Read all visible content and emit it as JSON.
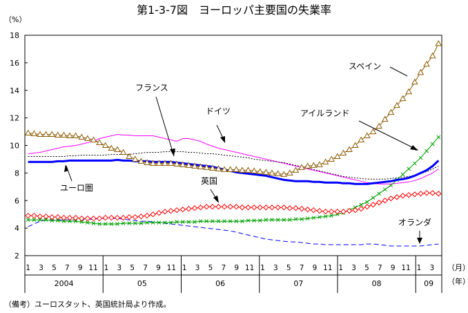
{
  "chart_data": {
    "type": "line",
    "title": "第1-3-7図　ヨーロッパ主要国の失業率",
    "y_unit": "（%）",
    "x_unit_month": "（月）",
    "x_unit_year": "（年）",
    "note": "（備考）ユーロスタット、英国統計局より作成。",
    "ylim": [
      2,
      18
    ],
    "y_ticks": [
      2,
      4,
      6,
      8,
      10,
      12,
      14,
      16,
      18
    ],
    "x_month_labels": [
      "1",
      "3",
      "5",
      "7",
      "9",
      "11",
      "1",
      "3",
      "5",
      "7",
      "9",
      "11",
      "1",
      "3",
      "5",
      "7",
      "9",
      "11",
      "1",
      "3",
      "5",
      "7",
      "9",
      "11",
      "1",
      "3",
      "5",
      "7",
      "9",
      "11",
      "1",
      "3"
    ],
    "years": [
      "2004",
      "05",
      "06",
      "07",
      "08",
      "09"
    ],
    "grid": false,
    "series": [
      {
        "name": "スペイン",
        "color": "#8B5A00",
        "marker": "triangle",
        "values": [
          10.9,
          10.85,
          10.8,
          10.8,
          10.8,
          10.75,
          10.75,
          10.7,
          10.7,
          10.6,
          10.5,
          10.4,
          10.2,
          10.0,
          9.8,
          9.7,
          9.5,
          9.2,
          9.0,
          8.85,
          8.75,
          8.7,
          8.7,
          8.7,
          8.7,
          8.65,
          8.6,
          8.55,
          8.5,
          8.45,
          8.4,
          8.35,
          8.3,
          8.25,
          8.25,
          8.25,
          8.2,
          8.2,
          8.15,
          8.1,
          8.05,
          8.0,
          7.95,
          7.9,
          8.0,
          8.2,
          8.4,
          8.5,
          8.55,
          8.6,
          8.8,
          9.0,
          9.2,
          9.45,
          9.7,
          10.0,
          10.4,
          10.7,
          11.0,
          11.4,
          11.9,
          12.4,
          12.9,
          13.4,
          13.9,
          14.6,
          15.3,
          15.9,
          16.5,
          17.4
        ]
      },
      {
        "name": "フランス",
        "color": "#FF00FF",
        "marker": "none",
        "values": [
          9.4,
          9.45,
          9.5,
          9.6,
          9.7,
          9.8,
          9.9,
          9.95,
          10.0,
          10.1,
          10.2,
          10.3,
          10.5,
          10.6,
          10.7,
          10.8,
          10.75,
          10.75,
          10.7,
          10.7,
          10.7,
          10.7,
          10.6,
          10.5,
          10.4,
          10.3,
          10.5,
          10.5,
          10.4,
          10.3,
          10.1,
          9.95,
          9.8,
          9.7,
          9.6,
          9.5,
          9.4,
          9.3,
          9.2,
          9.1,
          9.0,
          8.9,
          8.8,
          8.7,
          8.6,
          8.5,
          8.4,
          8.3,
          8.2,
          8.1,
          8.0,
          7.9,
          7.8,
          7.7,
          7.6,
          7.5,
          7.4,
          7.3,
          7.25,
          7.2,
          7.2,
          7.2,
          7.25,
          7.3,
          7.35,
          7.45,
          7.6,
          7.8,
          8.0,
          8.3
        ]
      },
      {
        "name": "ドイツ",
        "color": "#000000",
        "marker": "dotted",
        "values": [
          9.2,
          9.2,
          9.2,
          9.2,
          9.2,
          9.2,
          9.2,
          9.25,
          9.25,
          9.3,
          9.3,
          9.3,
          9.3,
          9.3,
          9.35,
          9.35,
          9.35,
          9.35,
          9.4,
          9.45,
          9.5,
          9.5,
          9.5,
          9.55,
          9.55,
          9.55,
          9.55,
          9.5,
          9.5,
          9.45,
          9.4,
          9.4,
          9.35,
          9.3,
          9.25,
          9.2,
          9.15,
          9.1,
          9.0,
          8.95,
          8.9,
          8.85,
          8.8,
          8.75,
          8.65,
          8.55,
          8.45,
          8.35,
          8.25,
          8.15,
          8.05,
          7.95,
          7.85,
          7.75,
          7.7,
          7.65,
          7.6,
          7.55,
          7.55,
          7.55,
          7.55,
          7.6,
          7.65,
          7.7,
          7.75,
          7.85,
          7.95,
          8.1,
          8.3,
          8.5
        ]
      },
      {
        "name": "アイルランド",
        "color": "#00A000",
        "marker": "cross",
        "values": [
          4.6,
          4.6,
          4.6,
          4.6,
          4.55,
          4.55,
          4.5,
          4.5,
          4.5,
          4.45,
          4.4,
          4.35,
          4.3,
          4.3,
          4.3,
          4.3,
          4.35,
          4.35,
          4.35,
          4.35,
          4.4,
          4.4,
          4.4,
          4.4,
          4.4,
          4.45,
          4.45,
          4.45,
          4.45,
          4.5,
          4.5,
          4.5,
          4.5,
          4.5,
          4.5,
          4.5,
          4.5,
          4.55,
          4.55,
          4.55,
          4.6,
          4.6,
          4.6,
          4.6,
          4.6,
          4.65,
          4.65,
          4.7,
          4.75,
          4.8,
          4.85,
          4.9,
          5.0,
          5.1,
          5.3,
          5.5,
          5.7,
          5.9,
          6.2,
          6.5,
          6.8,
          7.1,
          7.5,
          7.9,
          8.3,
          8.7,
          9.1,
          9.6,
          10.1,
          10.6
        ]
      },
      {
        "name": "ユーロ圏",
        "color": "#0000FF",
        "marker": "thick",
        "values": [
          8.8,
          8.8,
          8.8,
          8.8,
          8.8,
          8.85,
          8.85,
          8.9,
          8.9,
          8.9,
          8.9,
          8.9,
          8.9,
          8.9,
          8.9,
          8.95,
          8.9,
          8.9,
          8.85,
          8.85,
          8.85,
          8.8,
          8.8,
          8.8,
          8.8,
          8.75,
          8.7,
          8.65,
          8.6,
          8.55,
          8.5,
          8.45,
          8.35,
          8.25,
          8.15,
          8.05,
          8.0,
          7.95,
          7.9,
          7.85,
          7.8,
          7.7,
          7.6,
          7.5,
          7.45,
          7.4,
          7.4,
          7.4,
          7.35,
          7.35,
          7.3,
          7.3,
          7.3,
          7.25,
          7.25,
          7.2,
          7.2,
          7.2,
          7.25,
          7.3,
          7.35,
          7.4,
          7.5,
          7.55,
          7.65,
          7.8,
          8.0,
          8.2,
          8.5,
          8.9
        ]
      },
      {
        "name": "英国",
        "color": "#FF0000",
        "marker": "diamond",
        "values": [
          4.9,
          4.9,
          4.85,
          4.85,
          4.8,
          4.8,
          4.75,
          4.75,
          4.75,
          4.7,
          4.7,
          4.7,
          4.7,
          4.75,
          4.75,
          4.75,
          4.75,
          4.8,
          4.8,
          4.85,
          4.9,
          5.0,
          5.1,
          5.2,
          5.25,
          5.3,
          5.35,
          5.4,
          5.45,
          5.5,
          5.55,
          5.55,
          5.55,
          5.55,
          5.55,
          5.55,
          5.5,
          5.5,
          5.5,
          5.5,
          5.5,
          5.5,
          5.5,
          5.5,
          5.45,
          5.45,
          5.4,
          5.35,
          5.3,
          5.25,
          5.2,
          5.2,
          5.2,
          5.2,
          5.25,
          5.3,
          5.4,
          5.55,
          5.7,
          5.85,
          6.0,
          6.15,
          6.25,
          6.35,
          6.4,
          6.45,
          6.5,
          6.55,
          6.55,
          6.5
        ]
      },
      {
        "name": "オランダ",
        "color": "#0000FF",
        "marker": "dashed",
        "values": [
          4.1,
          4.3,
          4.5,
          4.6,
          4.6,
          4.6,
          4.6,
          4.6,
          4.6,
          4.6,
          4.65,
          4.65,
          4.7,
          4.7,
          4.7,
          4.7,
          4.65,
          4.6,
          4.55,
          4.5,
          4.5,
          4.45,
          4.4,
          4.35,
          4.3,
          4.25,
          4.2,
          4.15,
          4.1,
          4.05,
          4.0,
          3.95,
          3.9,
          3.85,
          3.8,
          3.7,
          3.6,
          3.5,
          3.4,
          3.3,
          3.2,
          3.15,
          3.1,
          3.05,
          3.0,
          3.0,
          2.95,
          2.9,
          2.85,
          2.85,
          2.8,
          2.8,
          2.8,
          2.8,
          2.8,
          2.8,
          2.8,
          2.85,
          2.85,
          2.8,
          2.75,
          2.7,
          2.7,
          2.7,
          2.7,
          2.7,
          2.7,
          2.75,
          2.8,
          2.85
        ]
      }
    ]
  }
}
